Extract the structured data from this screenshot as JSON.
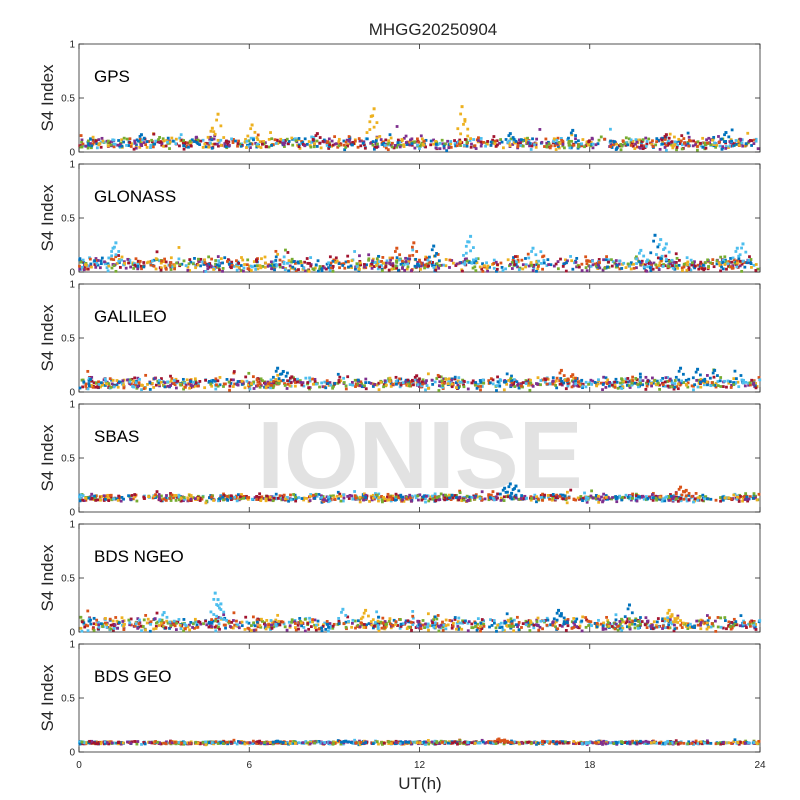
{
  "chart_data": {
    "type": "scatter",
    "title": "MHGG20250904",
    "xlabel": "UT(h)",
    "ylabel": "S4 Index",
    "xlim": [
      0,
      24
    ],
    "ylim": [
      0,
      1
    ],
    "xticks": [
      0,
      6,
      12,
      18,
      24
    ],
    "yticks": [
      0,
      0.5,
      1
    ],
    "watermark": "IONISE",
    "series_colors": [
      "#0072bd",
      "#d95319",
      "#edb120",
      "#7e2f8e",
      "#77ac30",
      "#4dbeee",
      "#a2142f"
    ],
    "panels": [
      {
        "name": "GPS",
        "baseline": 0.08,
        "noise": 0.04,
        "features": [
          {
            "series": 2,
            "values": [
              [
                4.9,
                0.35
              ],
              [
                6.1,
                0.25
              ],
              [
                10.4,
                0.4
              ],
              [
                10.3,
                0.33
              ],
              [
                13.5,
                0.42
              ],
              [
                13.6,
                0.3
              ],
              [
                4.7,
                0.22
              ]
            ]
          },
          {
            "series": 0,
            "values": [
              [
                17.4,
                0.2
              ],
              [
                22.8,
                0.18
              ],
              [
                2.2,
                0.16
              ],
              [
                15.2,
                0.17
              ]
            ]
          },
          {
            "series": 6,
            "values": [
              [
                20.7,
                0.16
              ],
              [
                8.4,
                0.17
              ]
            ]
          }
        ]
      },
      {
        "name": "GLONASS",
        "baseline": 0.07,
        "noise": 0.05,
        "features": [
          {
            "series": 5,
            "values": [
              [
                1.3,
                0.27
              ],
              [
                1.2,
                0.22
              ],
              [
                13.8,
                0.33
              ],
              [
                13.7,
                0.28
              ],
              [
                20.5,
                0.3
              ],
              [
                20.7,
                0.26
              ],
              [
                23.4,
                0.26
              ],
              [
                23.2,
                0.22
              ],
              [
                19.8,
                0.2
              ],
              [
                16.0,
                0.22
              ]
            ]
          },
          {
            "series": 0,
            "values": [
              [
                20.3,
                0.34
              ],
              [
                12.5,
                0.24
              ]
            ]
          },
          {
            "series": 1,
            "values": [
              [
                11.8,
                0.27
              ],
              [
                11.2,
                0.22
              ]
            ]
          }
        ]
      },
      {
        "name": "GALILEO",
        "baseline": 0.08,
        "noise": 0.04,
        "features": [
          {
            "series": 0,
            "values": [
              [
                7.0,
                0.22
              ],
              [
                7.2,
                0.19
              ],
              [
                21.2,
                0.22
              ],
              [
                22.4,
                0.2
              ],
              [
                21.8,
                0.21
              ]
            ]
          },
          {
            "series": 6,
            "values": [
              [
                11.9,
                0.15
              ],
              [
                7.5,
                0.14
              ]
            ]
          },
          {
            "series": 1,
            "values": [
              [
                17.0,
                0.2
              ],
              [
                17.4,
                0.16
              ]
            ]
          }
        ]
      },
      {
        "name": "SBAS",
        "baseline": 0.13,
        "noise": 0.025,
        "features": [
          {
            "series": 0,
            "values": [
              [
                15.2,
                0.26
              ],
              [
                15.4,
                0.24
              ],
              [
                15.0,
                0.22
              ]
            ]
          },
          {
            "series": 1,
            "values": [
              [
                21.2,
                0.23
              ],
              [
                21.4,
                0.2
              ]
            ]
          }
        ]
      },
      {
        "name": "BDS NGEO",
        "baseline": 0.07,
        "noise": 0.045,
        "features": [
          {
            "series": 5,
            "values": [
              [
                4.8,
                0.36
              ],
              [
                4.9,
                0.3
              ],
              [
                5.0,
                0.26
              ],
              [
                3.0,
                0.18
              ],
              [
                9.3,
                0.21
              ]
            ]
          },
          {
            "series": 2,
            "values": [
              [
                10.1,
                0.2
              ],
              [
                20.8,
                0.2
              ],
              [
                20.9,
                0.16
              ],
              [
                21.1,
                0.13
              ]
            ]
          },
          {
            "series": 0,
            "values": [
              [
                19.4,
                0.25
              ],
              [
                16.9,
                0.2
              ],
              [
                17.0,
                0.17
              ]
            ]
          }
        ]
      },
      {
        "name": "BDS GEO",
        "baseline": 0.085,
        "noise": 0.01,
        "features": [
          {
            "series": 1,
            "values": [
              [
                14.8,
                0.12
              ],
              [
                15.0,
                0.11
              ]
            ]
          },
          {
            "series": 0,
            "values": [
              [
                9.4,
                0.1
              ],
              [
                7.0,
                0.1
              ]
            ]
          }
        ]
      }
    ]
  }
}
